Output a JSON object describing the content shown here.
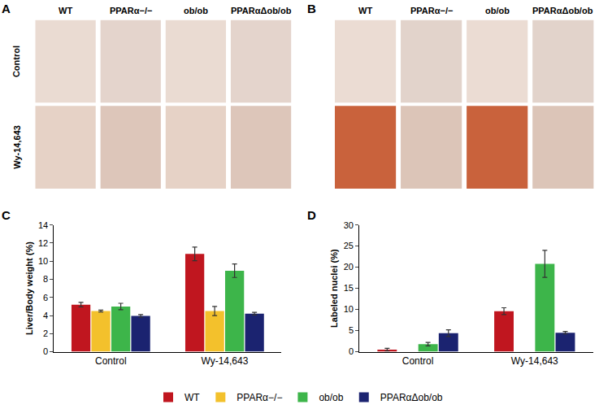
{
  "panels": [
    {
      "panel": "A",
      "columns": [
        "WT",
        "PPARα−/−",
        "ob/ob",
        "PPARαΔob/ob"
      ],
      "rows": [
        "Control",
        "Wy-14,643"
      ]
    },
    {
      "panel": "B",
      "columns": [
        "WT",
        "PPARα−/−",
        "ob/ob",
        "PPARαΔob/ob"
      ]
    }
  ],
  "chart_data": [
    {
      "panel": "C",
      "type": "bar",
      "categories": [
        "Control",
        "Wy-14,643"
      ],
      "y_label": "Liver/Body weight (%)",
      "ylim": [
        0,
        14
      ],
      "yticks": [
        0,
        2,
        4,
        6,
        8,
        10,
        12,
        14
      ],
      "grid": false,
      "legend": "bottom",
      "series": [
        {
          "name": "WT",
          "color": "#c0161f",
          "values": [
            5.2,
            10.8
          ],
          "errors": [
            0.25,
            0.75
          ]
        },
        {
          "name": "PPARα−/−",
          "color": "#f3c12c",
          "values": [
            4.5,
            4.5
          ],
          "errors": [
            0.1,
            0.5
          ]
        },
        {
          "name": "ob/ob",
          "color": "#3db54a",
          "values": [
            5.0,
            8.95
          ],
          "errors": [
            0.35,
            0.75
          ]
        },
        {
          "name": "PPARαΔob/ob",
          "color": "#1b2370",
          "values": [
            3.95,
            4.2
          ],
          "errors": [
            0.15,
            0.15
          ]
        }
      ]
    },
    {
      "panel": "D",
      "type": "bar",
      "categories": [
        "Control",
        "Wy-14,643"
      ],
      "y_label": "Labeled nuclei (%)",
      "ylim": [
        0,
        30
      ],
      "yticks": [
        0,
        5,
        10,
        15,
        20,
        25,
        30
      ],
      "grid": false,
      "series": [
        {
          "name": "WT",
          "color": "#c0161f",
          "values": [
            0.5,
            9.6
          ],
          "errors": [
            0.3,
            0.8
          ]
        },
        {
          "name": "PPARα−/−",
          "color": "#f3c12c",
          "values": [
            null,
            null
          ],
          "errors": [
            null,
            null
          ]
        },
        {
          "name": "ob/ob",
          "color": "#3db54a",
          "values": [
            1.8,
            20.8
          ],
          "errors": [
            0.4,
            3.2
          ]
        },
        {
          "name": "PPARαΔob/ob",
          "color": "#1b2370",
          "values": [
            4.4,
            4.5
          ],
          "errors": [
            0.8,
            0.3
          ]
        }
      ]
    }
  ]
}
